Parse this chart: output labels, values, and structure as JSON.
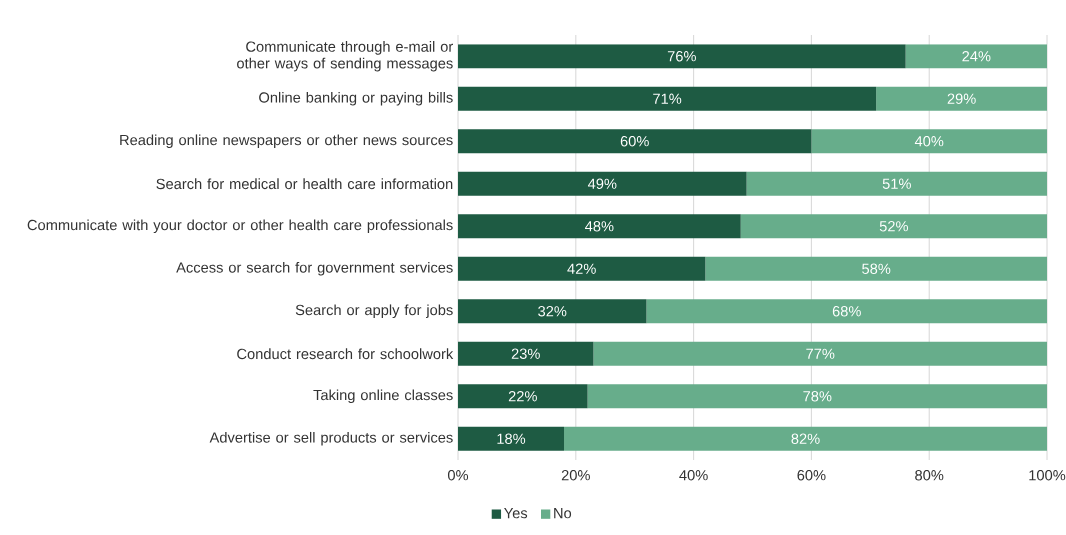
{
  "chart_data": {
    "type": "bar",
    "orientation": "horizontal",
    "stacked": true,
    "categories": [
      "Communicate through e-mail or other ways of sending messages",
      "Online banking or paying bills",
      "Reading online newspapers or other news sources",
      "Search for medical or health care information",
      "Communicate with your doctor or other health care professionals",
      "Access or search for government services",
      "Search or apply for jobs",
      "Conduct research for schoolwork",
      "Taking online classes",
      "Advertise or sell products or services"
    ],
    "series": [
      {
        "name": "Yes",
        "color": "#1e5b43",
        "values": [
          76,
          71,
          60,
          49,
          48,
          42,
          32,
          23,
          22,
          18
        ],
        "value_labels": [
          "76%",
          "71%",
          "60%",
          "49%",
          "48%",
          "42%",
          "32%",
          "23%",
          "22%",
          "18%"
        ]
      },
      {
        "name": "No",
        "color": "#67ad8b",
        "values": [
          24,
          29,
          40,
          51,
          52,
          58,
          68,
          77,
          78,
          82
        ],
        "value_labels": [
          "24%",
          "29%",
          "40%",
          "51%",
          "52%",
          "58%",
          "68%",
          "77%",
          "78%",
          "82%"
        ]
      }
    ],
    "xlim": [
      0,
      100
    ],
    "xticks": [
      {
        "value": 0,
        "label": "0%"
      },
      {
        "value": 20,
        "label": "20%"
      },
      {
        "value": 40,
        "label": "40%"
      },
      {
        "value": 60,
        "label": "60%"
      },
      {
        "value": 80,
        "label": "80%"
      },
      {
        "value": 100,
        "label": "100%"
      }
    ],
    "grid": "x",
    "legend": "bottom"
  }
}
